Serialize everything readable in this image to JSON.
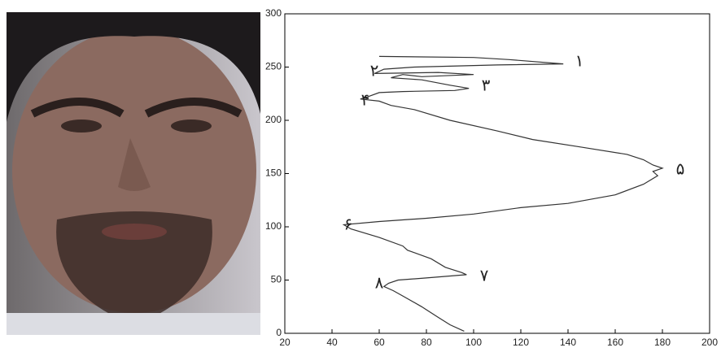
{
  "chart_data": {
    "type": "line",
    "x": [
      60,
      100,
      115,
      138,
      110,
      75,
      62,
      58,
      85,
      100,
      78,
      70,
      65,
      78,
      90,
      98,
      92,
      70,
      60,
      55,
      52,
      60,
      65,
      75,
      90,
      110,
      125,
      145,
      165,
      172,
      176,
      180,
      176,
      178,
      172,
      160,
      140,
      120,
      100,
      80,
      60,
      45,
      48,
      60,
      70,
      72,
      82,
      88,
      95,
      97,
      80,
      68,
      64,
      62,
      66,
      70,
      78,
      85,
      90,
      96
    ],
    "values": [
      260,
      259,
      257,
      253,
      252,
      250,
      248,
      244,
      245,
      243,
      241,
      243,
      240,
      238,
      233,
      230,
      228,
      227,
      226,
      222,
      220,
      218,
      214,
      210,
      200,
      190,
      182,
      175,
      168,
      163,
      158,
      155,
      152,
      148,
      140,
      130,
      122,
      118,
      112,
      108,
      105,
      102,
      98,
      90,
      82,
      78,
      70,
      62,
      57,
      55,
      52,
      50,
      47,
      44,
      40,
      35,
      25,
      15,
      8,
      2
    ],
    "color": "#333333",
    "xlim": [
      20,
      200
    ],
    "xticks": [
      20,
      40,
      60,
      80,
      100,
      120,
      140,
      160,
      180,
      200
    ],
    "ylim": [
      0,
      300
    ],
    "yticks": [
      0,
      50,
      100,
      150,
      200,
      250,
      300
    ],
    "annotations": [
      "۱",
      "۲",
      "۳",
      "۴",
      "۵",
      "۶",
      "۷",
      "۸"
    ]
  }
}
